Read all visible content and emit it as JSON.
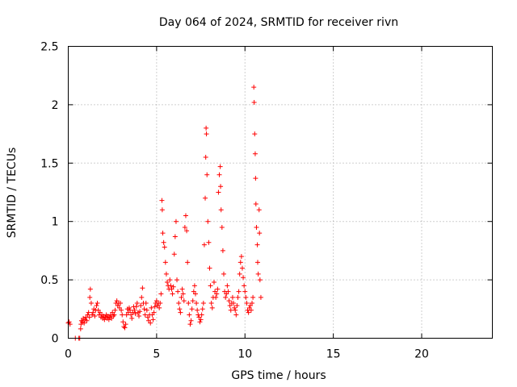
{
  "chart_data": {
    "type": "scatter",
    "title": "Day 064 of 2024, SRMTID for receiver rivn",
    "xlabel": "GPS time / hours",
    "ylabel": "SRMTID / TECUs",
    "xlim": [
      0,
      24
    ],
    "ylim": [
      0,
      2.5
    ],
    "xticks": [
      0,
      5,
      10,
      15,
      20
    ],
    "xtick_labels": [
      "0",
      "5",
      "10",
      "15",
      "20"
    ],
    "yticks": [
      0,
      0.5,
      1,
      1.5,
      2,
      2.5
    ],
    "ytick_labels": [
      "0",
      "0.5",
      "1",
      "1.5",
      "2",
      "2.5"
    ],
    "grid": true,
    "marker": "+",
    "color": "#ff0000",
    "series": [
      {
        "name": "SRMTID",
        "points": [
          [
            0.0,
            0.13
          ],
          [
            0.05,
            0.14
          ],
          [
            0.1,
            0.12
          ],
          [
            0.4,
            0.0
          ],
          [
            0.6,
            0.0
          ],
          [
            0.65,
            0.0
          ],
          [
            0.7,
            0.08
          ],
          [
            0.72,
            0.12
          ],
          [
            0.75,
            0.15
          ],
          [
            0.8,
            0.14
          ],
          [
            0.85,
            0.17
          ],
          [
            0.9,
            0.13
          ],
          [
            0.95,
            0.16
          ],
          [
            1.0,
            0.18
          ],
          [
            1.05,
            0.15
          ],
          [
            1.1,
            0.2
          ],
          [
            1.15,
            0.22
          ],
          [
            1.2,
            0.18
          ],
          [
            1.22,
            0.35
          ],
          [
            1.25,
            0.42
          ],
          [
            1.3,
            0.3
          ],
          [
            1.35,
            0.2
          ],
          [
            1.4,
            0.22
          ],
          [
            1.45,
            0.25
          ],
          [
            1.5,
            0.19
          ],
          [
            1.55,
            0.24
          ],
          [
            1.6,
            0.28
          ],
          [
            1.65,
            0.3
          ],
          [
            1.7,
            0.24
          ],
          [
            1.75,
            0.2
          ],
          [
            1.8,
            0.22
          ],
          [
            1.85,
            0.18
          ],
          [
            1.9,
            0.2
          ],
          [
            1.95,
            0.17
          ],
          [
            2.0,
            0.19
          ],
          [
            2.05,
            0.16
          ],
          [
            2.1,
            0.18
          ],
          [
            2.15,
            0.2
          ],
          [
            2.2,
            0.17
          ],
          [
            2.25,
            0.19
          ],
          [
            2.3,
            0.16
          ],
          [
            2.35,
            0.18
          ],
          [
            2.4,
            0.2
          ],
          [
            2.45,
            0.17
          ],
          [
            2.5,
            0.22
          ],
          [
            2.55,
            0.19
          ],
          [
            2.6,
            0.2
          ],
          [
            2.65,
            0.24
          ],
          [
            2.7,
            0.3
          ],
          [
            2.75,
            0.32
          ],
          [
            2.8,
            0.28
          ],
          [
            2.85,
            0.3
          ],
          [
            2.9,
            0.26
          ],
          [
            2.95,
            0.3
          ],
          [
            3.0,
            0.24
          ],
          [
            3.05,
            0.2
          ],
          [
            3.1,
            0.14
          ],
          [
            3.15,
            0.1
          ],
          [
            3.2,
            0.09
          ],
          [
            3.25,
            0.12
          ],
          [
            3.3,
            0.2
          ],
          [
            3.35,
            0.25
          ],
          [
            3.4,
            0.22
          ],
          [
            3.45,
            0.26
          ],
          [
            3.5,
            0.24
          ],
          [
            3.55,
            0.2
          ],
          [
            3.6,
            0.17
          ],
          [
            3.65,
            0.22
          ],
          [
            3.7,
            0.27
          ],
          [
            3.75,
            0.24
          ],
          [
            3.8,
            0.21
          ],
          [
            3.85,
            0.27
          ],
          [
            3.9,
            0.3
          ],
          [
            3.95,
            0.22
          ],
          [
            4.0,
            0.19
          ],
          [
            4.05,
            0.23
          ],
          [
            4.1,
            0.28
          ],
          [
            4.15,
            0.35
          ],
          [
            4.2,
            0.43
          ],
          [
            4.25,
            0.3
          ],
          [
            4.3,
            0.25
          ],
          [
            4.35,
            0.2
          ],
          [
            4.4,
            0.3
          ],
          [
            4.45,
            0.24
          ],
          [
            4.5,
            0.18
          ],
          [
            4.55,
            0.15
          ],
          [
            4.6,
            0.2
          ],
          [
            4.65,
            0.13
          ],
          [
            4.7,
            0.26
          ],
          [
            4.75,
            0.2
          ],
          [
            4.8,
            0.16
          ],
          [
            4.85,
            0.22
          ],
          [
            4.9,
            0.27
          ],
          [
            4.95,
            0.3
          ],
          [
            5.0,
            0.32
          ],
          [
            5.05,
            0.28
          ],
          [
            5.1,
            0.3
          ],
          [
            5.15,
            0.26
          ],
          [
            5.2,
            0.3
          ],
          [
            5.25,
            0.38
          ],
          [
            5.3,
            1.18
          ],
          [
            5.32,
            1.1
          ],
          [
            5.35,
            0.9
          ],
          [
            5.4,
            0.82
          ],
          [
            5.45,
            0.78
          ],
          [
            5.5,
            0.65
          ],
          [
            5.55,
            0.55
          ],
          [
            5.6,
            0.48
          ],
          [
            5.65,
            0.45
          ],
          [
            5.7,
            0.42
          ],
          [
            5.75,
            0.5
          ],
          [
            5.8,
            0.45
          ],
          [
            5.85,
            0.42
          ],
          [
            5.9,
            0.38
          ],
          [
            5.95,
            0.44
          ],
          [
            6.0,
            0.72
          ],
          [
            6.05,
            0.87
          ],
          [
            6.1,
            1.0
          ],
          [
            6.15,
            0.5
          ],
          [
            6.2,
            0.4
          ],
          [
            6.25,
            0.3
          ],
          [
            6.3,
            0.25
          ],
          [
            6.35,
            0.22
          ],
          [
            6.4,
            0.35
          ],
          [
            6.45,
            0.42
          ],
          [
            6.5,
            0.38
          ],
          [
            6.55,
            0.32
          ],
          [
            6.6,
            0.95
          ],
          [
            6.65,
            1.05
          ],
          [
            6.7,
            0.92
          ],
          [
            6.75,
            0.65
          ],
          [
            6.8,
            0.3
          ],
          [
            6.85,
            0.2
          ],
          [
            6.9,
            0.12
          ],
          [
            6.95,
            0.15
          ],
          [
            7.0,
            0.25
          ],
          [
            7.05,
            0.32
          ],
          [
            7.1,
            0.4
          ],
          [
            7.15,
            0.45
          ],
          [
            7.2,
            0.38
          ],
          [
            7.25,
            0.3
          ],
          [
            7.3,
            0.24
          ],
          [
            7.35,
            0.2
          ],
          [
            7.4,
            0.18
          ],
          [
            7.45,
            0.14
          ],
          [
            7.5,
            0.16
          ],
          [
            7.55,
            0.2
          ],
          [
            7.6,
            0.25
          ],
          [
            7.65,
            0.3
          ],
          [
            7.7,
            0.8
          ],
          [
            7.75,
            1.2
          ],
          [
            7.78,
            1.55
          ],
          [
            7.8,
            1.8
          ],
          [
            7.82,
            1.75
          ],
          [
            7.85,
            1.4
          ],
          [
            7.9,
            1.0
          ],
          [
            7.95,
            0.82
          ],
          [
            8.0,
            0.6
          ],
          [
            8.05,
            0.45
          ],
          [
            8.1,
            0.3
          ],
          [
            8.15,
            0.26
          ],
          [
            8.2,
            0.35
          ],
          [
            8.25,
            0.48
          ],
          [
            8.3,
            0.4
          ],
          [
            8.35,
            0.35
          ],
          [
            8.4,
            0.38
          ],
          [
            8.45,
            0.42
          ],
          [
            8.5,
            1.25
          ],
          [
            8.55,
            1.4
          ],
          [
            8.6,
            1.47
          ],
          [
            8.62,
            1.3
          ],
          [
            8.65,
            1.1
          ],
          [
            8.7,
            0.95
          ],
          [
            8.75,
            0.75
          ],
          [
            8.8,
            0.55
          ],
          [
            8.85,
            0.4
          ],
          [
            8.9,
            0.35
          ],
          [
            8.95,
            0.38
          ],
          [
            9.0,
            0.45
          ],
          [
            9.05,
            0.4
          ],
          [
            9.1,
            0.32
          ],
          [
            9.15,
            0.28
          ],
          [
            9.2,
            0.24
          ],
          [
            9.25,
            0.3
          ],
          [
            9.3,
            0.35
          ],
          [
            9.35,
            0.3
          ],
          [
            9.4,
            0.26
          ],
          [
            9.45,
            0.24
          ],
          [
            9.5,
            0.2
          ],
          [
            9.55,
            0.28
          ],
          [
            9.6,
            0.35
          ],
          [
            9.65,
            0.4
          ],
          [
            9.7,
            0.55
          ],
          [
            9.75,
            0.65
          ],
          [
            9.8,
            0.7
          ],
          [
            9.85,
            0.6
          ],
          [
            9.9,
            0.52
          ],
          [
            9.95,
            0.45
          ],
          [
            10.0,
            0.4
          ],
          [
            10.05,
            0.35
          ],
          [
            10.1,
            0.3
          ],
          [
            10.15,
            0.24
          ],
          [
            10.2,
            0.22
          ],
          [
            10.25,
            0.26
          ],
          [
            10.3,
            0.28
          ],
          [
            10.35,
            0.24
          ],
          [
            10.4,
            0.3
          ],
          [
            10.45,
            0.35
          ],
          [
            10.5,
            2.15
          ],
          [
            10.52,
            2.02
          ],
          [
            10.55,
            1.75
          ],
          [
            10.58,
            1.58
          ],
          [
            10.6,
            1.37
          ],
          [
            10.62,
            1.15
          ],
          [
            10.65,
            0.95
          ],
          [
            10.7,
            0.8
          ],
          [
            10.72,
            0.65
          ],
          [
            10.75,
            0.55
          ],
          [
            10.8,
            1.1
          ],
          [
            10.82,
            0.9
          ],
          [
            10.85,
            0.5
          ],
          [
            10.9,
            0.35
          ]
        ]
      }
    ]
  }
}
